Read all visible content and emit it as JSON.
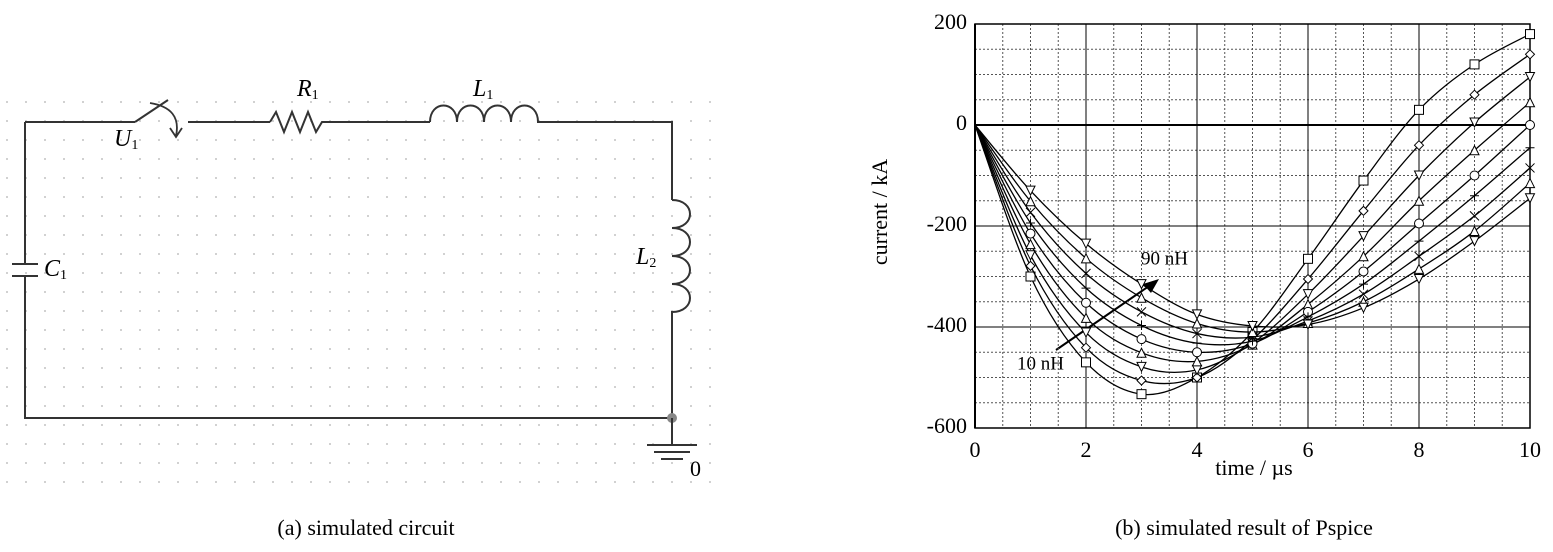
{
  "circuit": {
    "components": [
      {
        "letter": "U",
        "index": "1"
      },
      {
        "letter": "R",
        "index": "1"
      },
      {
        "letter": "L",
        "index": "1"
      },
      {
        "letter": "L",
        "index": "2"
      },
      {
        "letter": "C",
        "index": "1"
      }
    ],
    "ground": "0",
    "caption": "(a) simulated circuit"
  },
  "chart_data": {
    "type": "line",
    "caption": "(b) simulated result of Pspice",
    "x_label": "time / µs",
    "y_label": "current / kA",
    "x": [
      0,
      1,
      2,
      3,
      4,
      5,
      6,
      7,
      8,
      9,
      10
    ],
    "xlim": [
      0,
      10
    ],
    "xticks": [
      0,
      2,
      4,
      6,
      8,
      10
    ],
    "ylim": [
      -600,
      200
    ],
    "yticks": [
      -600,
      -400,
      -200,
      0,
      200
    ],
    "grid": true,
    "line_color": "#000000",
    "annotations": [
      "90 nH",
      "10 nH"
    ],
    "series": [
      {
        "marker": "square",
        "values": [
          0,
          -300,
          -470,
          -533,
          -500,
          -410,
          -265,
          -110,
          30,
          120,
          180
        ]
      },
      {
        "marker": "diamond",
        "values": [
          0,
          -279,
          -441,
          -506,
          -500,
          -425,
          -305,
          -170,
          -40,
          60,
          140
        ]
      },
      {
        "marker": "triangle-down",
        "values": [
          0,
          -258,
          -411,
          -479,
          -485,
          -432,
          -335,
          -220,
          -100,
          5,
          95
        ]
      },
      {
        "marker": "triangle-up",
        "values": [
          0,
          -236,
          -382,
          -451,
          -468,
          -435,
          -355,
          -260,
          -150,
          -50,
          45
        ]
      },
      {
        "marker": "circle",
        "values": [
          0,
          -215,
          -352,
          -424,
          -450,
          -433,
          -370,
          -290,
          -195,
          -100,
          0
        ]
      },
      {
        "marker": "plus",
        "values": [
          0,
          -194,
          -323,
          -397,
          -432,
          -428,
          -380,
          -315,
          -230,
          -140,
          -45
        ]
      },
      {
        "marker": "cross",
        "values": [
          0,
          -173,
          -294,
          -370,
          -413,
          -420,
          -388,
          -335,
          -260,
          -180,
          -85
        ]
      },
      {
        "marker": "triangle-up",
        "values": [
          0,
          -151,
          -264,
          -342,
          -393,
          -410,
          -392,
          -350,
          -285,
          -210,
          -115
        ]
      },
      {
        "marker": "triangle-down",
        "values": [
          0,
          -130,
          -235,
          -315,
          -375,
          -398,
          -395,
          -362,
          -305,
          -230,
          -145
        ]
      }
    ]
  }
}
